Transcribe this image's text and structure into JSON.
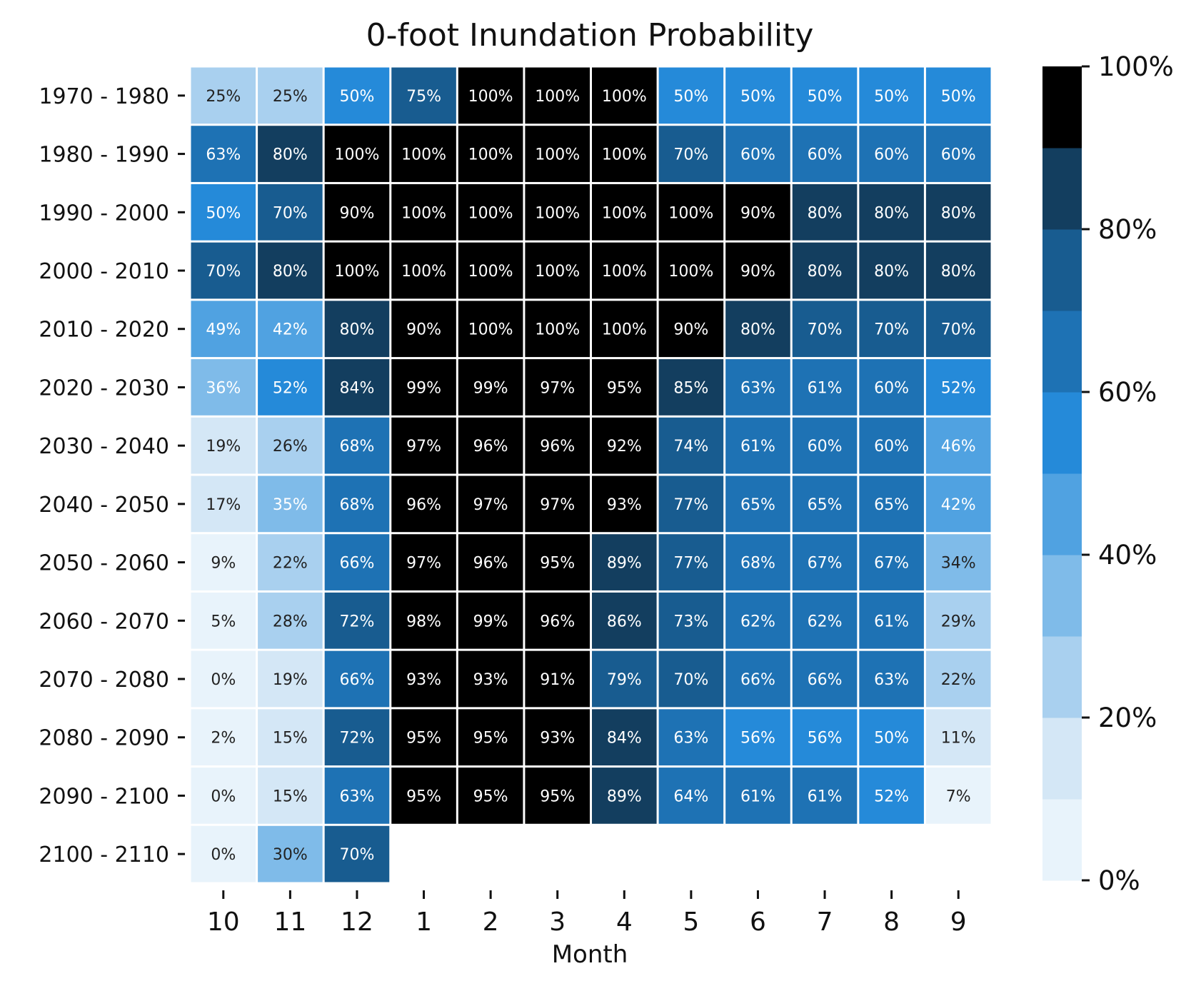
{
  "chart_data": {
    "type": "heatmap",
    "title": "0-foot Inundation Probability",
    "xlabel": "Month",
    "ylabel": "",
    "x_categories": [
      "10",
      "11",
      "12",
      "1",
      "2",
      "3",
      "4",
      "5",
      "6",
      "7",
      "8",
      "9"
    ],
    "y_categories": [
      "1970 - 1980",
      "1980 - 1990",
      "1990 - 2000",
      "2000 - 2010",
      "2010 - 2020",
      "2020 - 2030",
      "2030 - 2040",
      "2040 - 2050",
      "2050 - 2060",
      "2060 - 2070",
      "2070 - 2080",
      "2080 - 2090",
      "2090 - 2100",
      "2100 - 2110"
    ],
    "values": [
      [
        25,
        25,
        50,
        75,
        100,
        100,
        100,
        50,
        50,
        50,
        50,
        50
      ],
      [
        63,
        80,
        100,
        100,
        100,
        100,
        100,
        70,
        60,
        60,
        60,
        60
      ],
      [
        50,
        70,
        90,
        100,
        100,
        100,
        100,
        100,
        90,
        80,
        80,
        80
      ],
      [
        70,
        80,
        100,
        100,
        100,
        100,
        100,
        100,
        90,
        80,
        80,
        80
      ],
      [
        49,
        42,
        80,
        90,
        100,
        100,
        100,
        90,
        80,
        70,
        70,
        70
      ],
      [
        36,
        52,
        84,
        99,
        99,
        97,
        95,
        85,
        63,
        61,
        60,
        52
      ],
      [
        19,
        26,
        68,
        97,
        96,
        96,
        92,
        74,
        61,
        60,
        60,
        46
      ],
      [
        17,
        35,
        68,
        96,
        97,
        97,
        93,
        77,
        65,
        65,
        65,
        42
      ],
      [
        9,
        22,
        66,
        97,
        96,
        95,
        89,
        77,
        68,
        67,
        67,
        34
      ],
      [
        5,
        28,
        72,
        98,
        99,
        96,
        86,
        73,
        62,
        62,
        61,
        29
      ],
      [
        0,
        19,
        66,
        93,
        93,
        91,
        79,
        70,
        66,
        66,
        63,
        22
      ],
      [
        2,
        15,
        72,
        95,
        95,
        93,
        84,
        63,
        56,
        56,
        50,
        11
      ],
      [
        0,
        15,
        63,
        95,
        95,
        95,
        89,
        64,
        61,
        61,
        52,
        7
      ],
      [
        0,
        30,
        70,
        null,
        null,
        null,
        null,
        null,
        null,
        null,
        null,
        null
      ]
    ],
    "value_suffix": "%",
    "colorbar": {
      "range": [
        0,
        100
      ],
      "ticks": [
        "0%",
        "20%",
        "40%",
        "60%",
        "80%",
        "100%"
      ],
      "tick_values": [
        0,
        20,
        40,
        60,
        80,
        100
      ],
      "colors": [
        "#e8f3fb",
        "#d4e7f6",
        "#a9d0ef",
        "#7fbbe9",
        "#50a2e1",
        "#258ad9",
        "#1e72b4",
        "#185c90",
        "#133e5f",
        "#000000"
      ]
    }
  }
}
